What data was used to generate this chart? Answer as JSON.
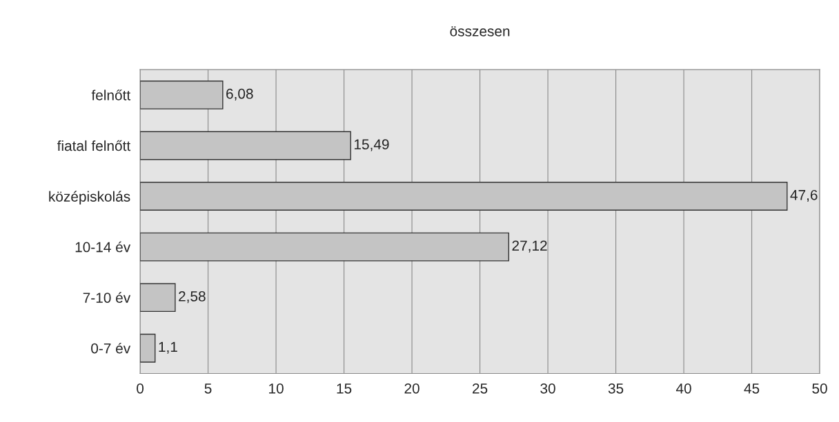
{
  "chart_data": {
    "type": "bar",
    "orientation": "horizontal",
    "title": "összesen",
    "categories": [
      "felnőtt",
      "fiatal felnőtt",
      "középiskolás",
      "10-14 év",
      "7-10 év",
      "0-7 év"
    ],
    "values": [
      6.08,
      15.49,
      47.6,
      27.12,
      2.58,
      1.1
    ],
    "value_labels": [
      "6,08",
      "15,49",
      "47,6",
      "27,12",
      "2,58",
      "1,1"
    ],
    "color": "#c4c4c4",
    "xlim": [
      0,
      50
    ],
    "xticks": [
      0,
      5,
      10,
      15,
      20,
      25,
      30,
      35,
      40,
      45,
      50
    ],
    "grid": "x"
  }
}
